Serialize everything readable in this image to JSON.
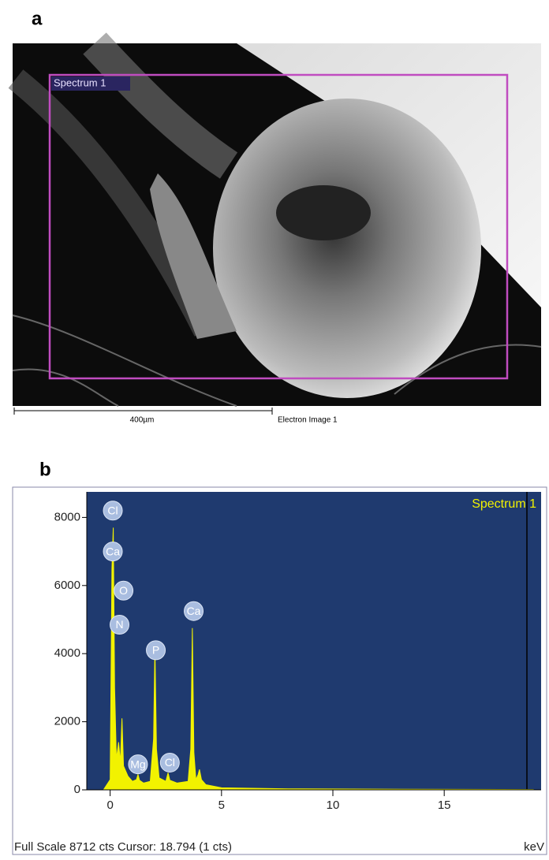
{
  "image_panel": {
    "label": "a",
    "region_label": "Spectrum 1",
    "scale_bar": "400µm",
    "caption": "Electron Image 1"
  },
  "chart_data": {
    "type": "area",
    "label": "b",
    "title": "Spectrum 1",
    "color": "#f2f200",
    "background": "#1f3a6f",
    "x": [
      -0.3,
      0,
      0.08,
      0.14,
      0.2,
      0.28,
      0.38,
      0.46,
      0.53,
      0.6,
      0.8,
      1.0,
      1.18,
      1.25,
      1.32,
      1.5,
      1.8,
      1.95,
      2.01,
      2.08,
      2.2,
      2.5,
      2.6,
      2.68,
      3.0,
      3.5,
      3.62,
      3.69,
      3.76,
      3.85,
      3.95,
      4.01,
      4.1,
      4.3,
      5,
      8,
      12,
      19
    ],
    "values": [
      0,
      300,
      6500,
      7700,
      3000,
      900,
      1400,
      800,
      2100,
      700,
      400,
      250,
      300,
      450,
      280,
      200,
      250,
      1500,
      4200,
      1200,
      350,
      250,
      500,
      280,
      200,
      250,
      1200,
      4750,
      1100,
      300,
      450,
      600,
      300,
      150,
      60,
      30,
      20,
      10
    ],
    "xlim": [
      -1.05,
      19.35
    ],
    "ylim": [
      0,
      8750
    ],
    "xticks": [
      0,
      5,
      10,
      15
    ],
    "yticks": [
      0,
      2000,
      4000,
      6000,
      8000
    ],
    "peaks": [
      {
        "label": "Cl",
        "x": 0.12,
        "y": 8200
      },
      {
        "label": "Ca",
        "x": 0.12,
        "y": 7000
      },
      {
        "label": "O",
        "x": 0.6,
        "y": 5850
      },
      {
        "label": "N",
        "x": 0.42,
        "y": 4850
      },
      {
        "label": "P",
        "x": 2.05,
        "y": 4100
      },
      {
        "label": "Ca",
        "x": 3.75,
        "y": 5250
      },
      {
        "label": "Mg",
        "x": 1.25,
        "y": 750
      },
      {
        "label": "Cl",
        "x": 2.68,
        "y": 800
      }
    ],
    "footer": "Full Scale 8712 cts Cursor: 18.794  (1 cts)",
    "x_unit": "keV"
  }
}
